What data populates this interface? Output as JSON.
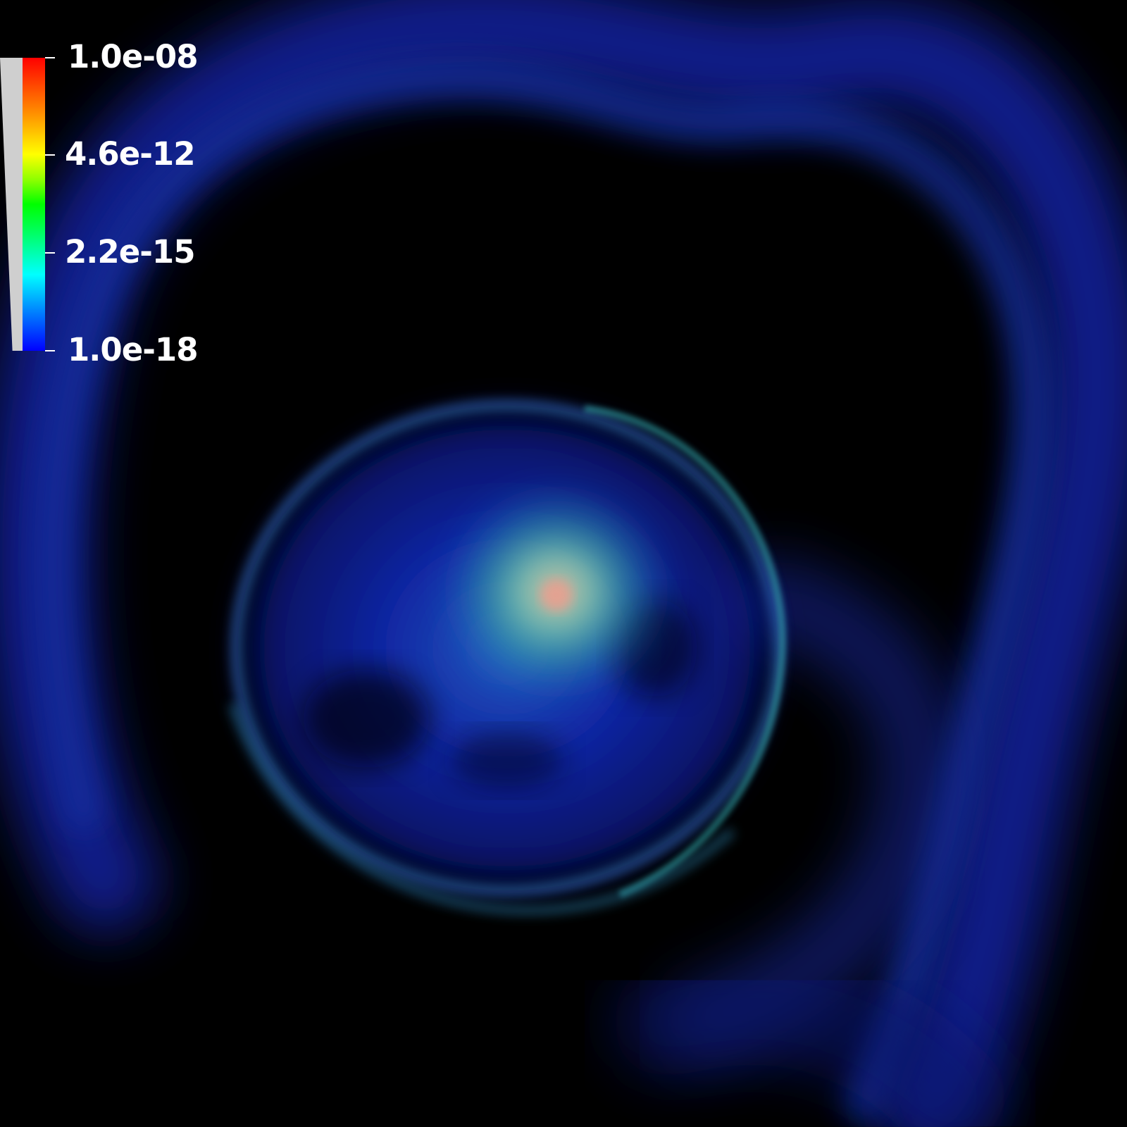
{
  "colorbar": {
    "labels": [
      "1.0e-08",
      "4.6e-12",
      "2.2e-15",
      "1.0e-18"
    ],
    "colormap": [
      "#0000ff",
      "#00ffff",
      "#00ff00",
      "#ffff00",
      "#ff0000"
    ]
  },
  "scene": {
    "background": "#000000",
    "core_color": "#e8a090",
    "shell_color": "#1a3cff"
  }
}
